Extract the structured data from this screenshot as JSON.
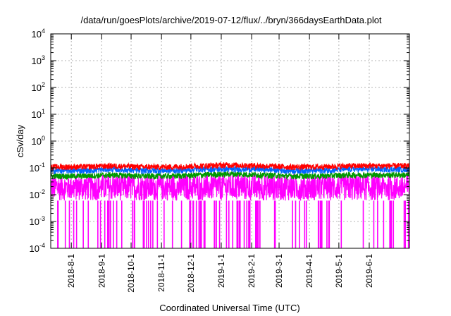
{
  "chart_data": {
    "type": "line",
    "title": "/data/run/goesPlots/archive/2019-07-12/flux/../bryn/366daysEarthData.plot",
    "xlabel": "Coordinated Universal Time (UTC)",
    "ylabel": "cSv/day",
    "yscale": "log",
    "ylim": [
      0.0001,
      10000
    ],
    "xlim": [
      "2018-07-11",
      "2019-07-12"
    ],
    "grid": true,
    "legend": "none",
    "y_tick_labels": [
      {
        "base": "10",
        "exp": "-4"
      },
      {
        "base": "10",
        "exp": "-3"
      },
      {
        "base": "10",
        "exp": "-2"
      },
      {
        "base": "10",
        "exp": "-1"
      },
      {
        "base": "10",
        "exp": "0"
      },
      {
        "base": "10",
        "exp": "1"
      },
      {
        "base": "10",
        "exp": "2"
      },
      {
        "base": "10",
        "exp": "3"
      },
      {
        "base": "10",
        "exp": "4"
      }
    ],
    "x_tick_labels": [
      "2018-8-1",
      "2018-9-1",
      "2018-10-1",
      "2018-11-1",
      "2018-12-1",
      "2019-1-1",
      "2019-2-1",
      "2019-3-1",
      "2019-4-1",
      "2019-5-1",
      "2019-6-1"
    ],
    "series": [
      {
        "color": "#ff0000",
        "values": [
          0.11,
          0.11,
          0.12,
          0.11,
          0.11,
          0.12,
          0.13,
          0.12,
          0.11,
          0.11,
          0.12,
          0.12
        ]
      },
      {
        "color": "#0066ff",
        "values": [
          0.08,
          0.08,
          0.09,
          0.08,
          0.08,
          0.09,
          0.09,
          0.09,
          0.08,
          0.08,
          0.09,
          0.09
        ]
      },
      {
        "color": "#009900",
        "values": [
          0.05,
          0.05,
          0.055,
          0.05,
          0.05,
          0.055,
          0.06,
          0.055,
          0.05,
          0.05,
          0.055,
          0.055
        ]
      },
      {
        "color": "#ff00ff",
        "values": [
          0.03,
          0.03,
          0.03,
          0.03,
          0.03,
          0.03,
          0.035,
          0.03,
          0.03,
          0.03,
          0.03,
          0.03
        ],
        "floor": 0.006,
        "dropouts_to": 0.0001
      }
    ],
    "series_dates": [
      "2018-07-11",
      "2018-08-11",
      "2018-09-11",
      "2018-10-11",
      "2018-11-11",
      "2018-12-11",
      "2019-01-11",
      "2019-02-11",
      "2019-03-11",
      "2019-04-11",
      "2019-05-11",
      "2019-06-11"
    ]
  }
}
